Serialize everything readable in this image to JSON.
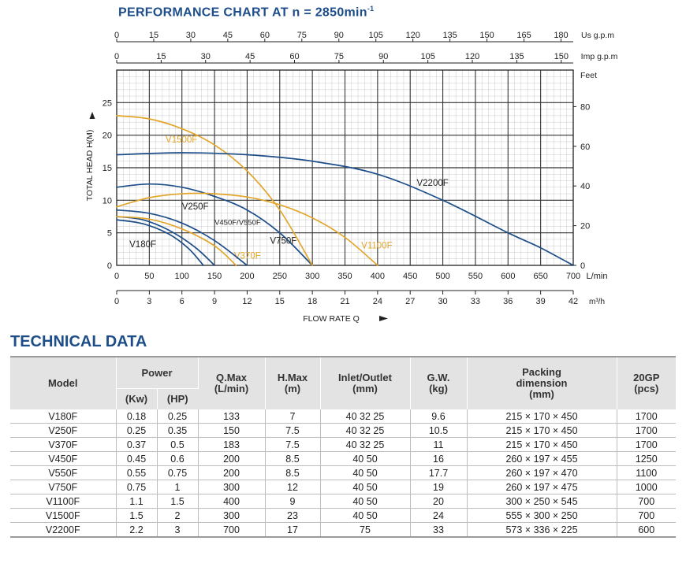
{
  "chart_title_main": "PERFORMANCE CHART AT n = 2850min",
  "chart_title_sup": "-1",
  "section_title": "TECHNICAL DATA",
  "chart_data": {
    "type": "line",
    "xlabel": "FLOW RATE Q",
    "ylabel": "TOTAL HEAD  H(M)",
    "xlim": [
      0,
      700
    ],
    "ylim": [
      0,
      30
    ],
    "x_unit": "L/min",
    "x_ticks": [
      "0",
      "50",
      "100",
      "150",
      "200",
      "250",
      "300",
      "350",
      "400",
      "450",
      "500",
      "550",
      "600",
      "650",
      "700"
    ],
    "y_ticks": [
      "0",
      "5",
      "10",
      "15",
      "20",
      "25"
    ],
    "secondary_axes": {
      "bottom_m3h": {
        "unit": "m³/h",
        "ticks": [
          "0",
          "3",
          "6",
          "9",
          "12",
          "15",
          "18",
          "21",
          "24",
          "27",
          "30",
          "33",
          "36",
          "39",
          "42"
        ]
      },
      "top_us_gpm": {
        "unit": "Us g.p.m",
        "ticks": [
          "0",
          "15",
          "30",
          "45",
          "60",
          "75",
          "90",
          "105",
          "120",
          "135",
          "150",
          "165",
          "180"
        ]
      },
      "top_imp_gpm": {
        "unit": "Imp g.p.m",
        "ticks": [
          "0",
          "15",
          "30",
          "45",
          "60",
          "75",
          "90",
          "105",
          "120",
          "135",
          "150"
        ]
      },
      "right_feet": {
        "unit": "Feet",
        "ticks": [
          "0",
          "20",
          "40",
          "60",
          "80"
        ]
      }
    },
    "grid": true,
    "series": [
      {
        "name": "V180F",
        "color": "#1d4e8a",
        "x": [
          0,
          40,
          80,
          110,
          133
        ],
        "y": [
          7,
          6.4,
          4.8,
          2.6,
          0
        ]
      },
      {
        "name": "V250F",
        "color": "#1d4e8a",
        "x": [
          0,
          40,
          80,
          120,
          150
        ],
        "y": [
          7.5,
          7,
          5.4,
          2.8,
          0
        ]
      },
      {
        "name": "V370F",
        "color": "#e2a62b",
        "x": [
          0,
          50,
          100,
          150,
          183
        ],
        "y": [
          7.5,
          7.1,
          5.6,
          3,
          0
        ]
      },
      {
        "name": "V450F/V550F",
        "color": "#1d4e8a",
        "x": [
          0,
          50,
          100,
          150,
          200
        ],
        "y": [
          8.5,
          8,
          6.5,
          3.8,
          0
        ]
      },
      {
        "name": "V750F",
        "color": "#1d4e8a",
        "x": [
          0,
          50,
          100,
          150,
          200,
          250,
          300
        ],
        "y": [
          12,
          12.5,
          12,
          10.6,
          8.5,
          5,
          0
        ]
      },
      {
        "name": "V1100F",
        "color": "#e2a62b",
        "x": [
          0,
          50,
          100,
          150,
          200,
          250,
          300,
          350,
          400
        ],
        "y": [
          9,
          10.4,
          11,
          11,
          10.5,
          9.3,
          7.3,
          4.3,
          0
        ]
      },
      {
        "name": "V1500F",
        "color": "#e2a62b",
        "x": [
          0,
          50,
          100,
          150,
          200,
          250,
          300
        ],
        "y": [
          23,
          22.5,
          21,
          18.5,
          14.5,
          8.5,
          0
        ]
      },
      {
        "name": "V2200F",
        "color": "#1d4e8a",
        "x": [
          0,
          100,
          200,
          300,
          400,
          500,
          600,
          650,
          700
        ],
        "y": [
          17,
          17.3,
          17,
          16,
          14,
          10,
          5,
          2.7,
          0
        ]
      }
    ]
  },
  "table": {
    "headers": {
      "model": "Model",
      "power": "Power",
      "kw": "(Kw)",
      "hp": "(HP)",
      "qmax_1": "Q.Max",
      "qmax_2": "(L/min)",
      "hmax_1": "H.Max",
      "hmax_2": "(m)",
      "io_1": "Inlet/Outlet",
      "io_2": "(mm)",
      "gw_1": "G.W.",
      "gw_2": "(kg)",
      "pk_1": "Packing",
      "pk_2": "dimension",
      "pk_3": "(mm)",
      "gp_1": "20GP",
      "gp_2": "(pcs)"
    },
    "rows": [
      [
        "V180F",
        "0.18",
        "0.25",
        "133",
        "7",
        "40 32 25",
        "9.6",
        "215 × 170 × 450",
        "1700"
      ],
      [
        "V250F",
        "0.25",
        "0.35",
        "150",
        "7.5",
        "40 32 25",
        "10.5",
        "215 × 170 × 450",
        "1700"
      ],
      [
        "V370F",
        "0.37",
        "0.5",
        "183",
        "7.5",
        "40 32 25",
        "11",
        "215 × 170 × 450",
        "1700"
      ],
      [
        "V450F",
        "0.45",
        "0.6",
        "200",
        "8.5",
        "40 50",
        "16",
        "260 × 197 × 455",
        "1250"
      ],
      [
        "V550F",
        "0.55",
        "0.75",
        "200",
        "8.5",
        "40 50",
        "17.7",
        "260 × 197 × 470",
        "1100"
      ],
      [
        "V750F",
        "0.75",
        "1",
        "300",
        "12",
        "40 50",
        "19",
        "260 × 197 × 475",
        "1000"
      ],
      [
        "V1100F",
        "1.1",
        "1.5",
        "400",
        "9",
        "40 50",
        "20",
        "300 × 250 × 545",
        "700"
      ],
      [
        "V1500F",
        "1.5",
        "2",
        "300",
        "23",
        "40 50",
        "24",
        "555 × 300 × 250",
        "700"
      ],
      [
        "V2200F",
        "2.2",
        "3",
        "700",
        "17",
        "75",
        "33",
        "573 × 336 × 225",
        "600"
      ]
    ]
  }
}
